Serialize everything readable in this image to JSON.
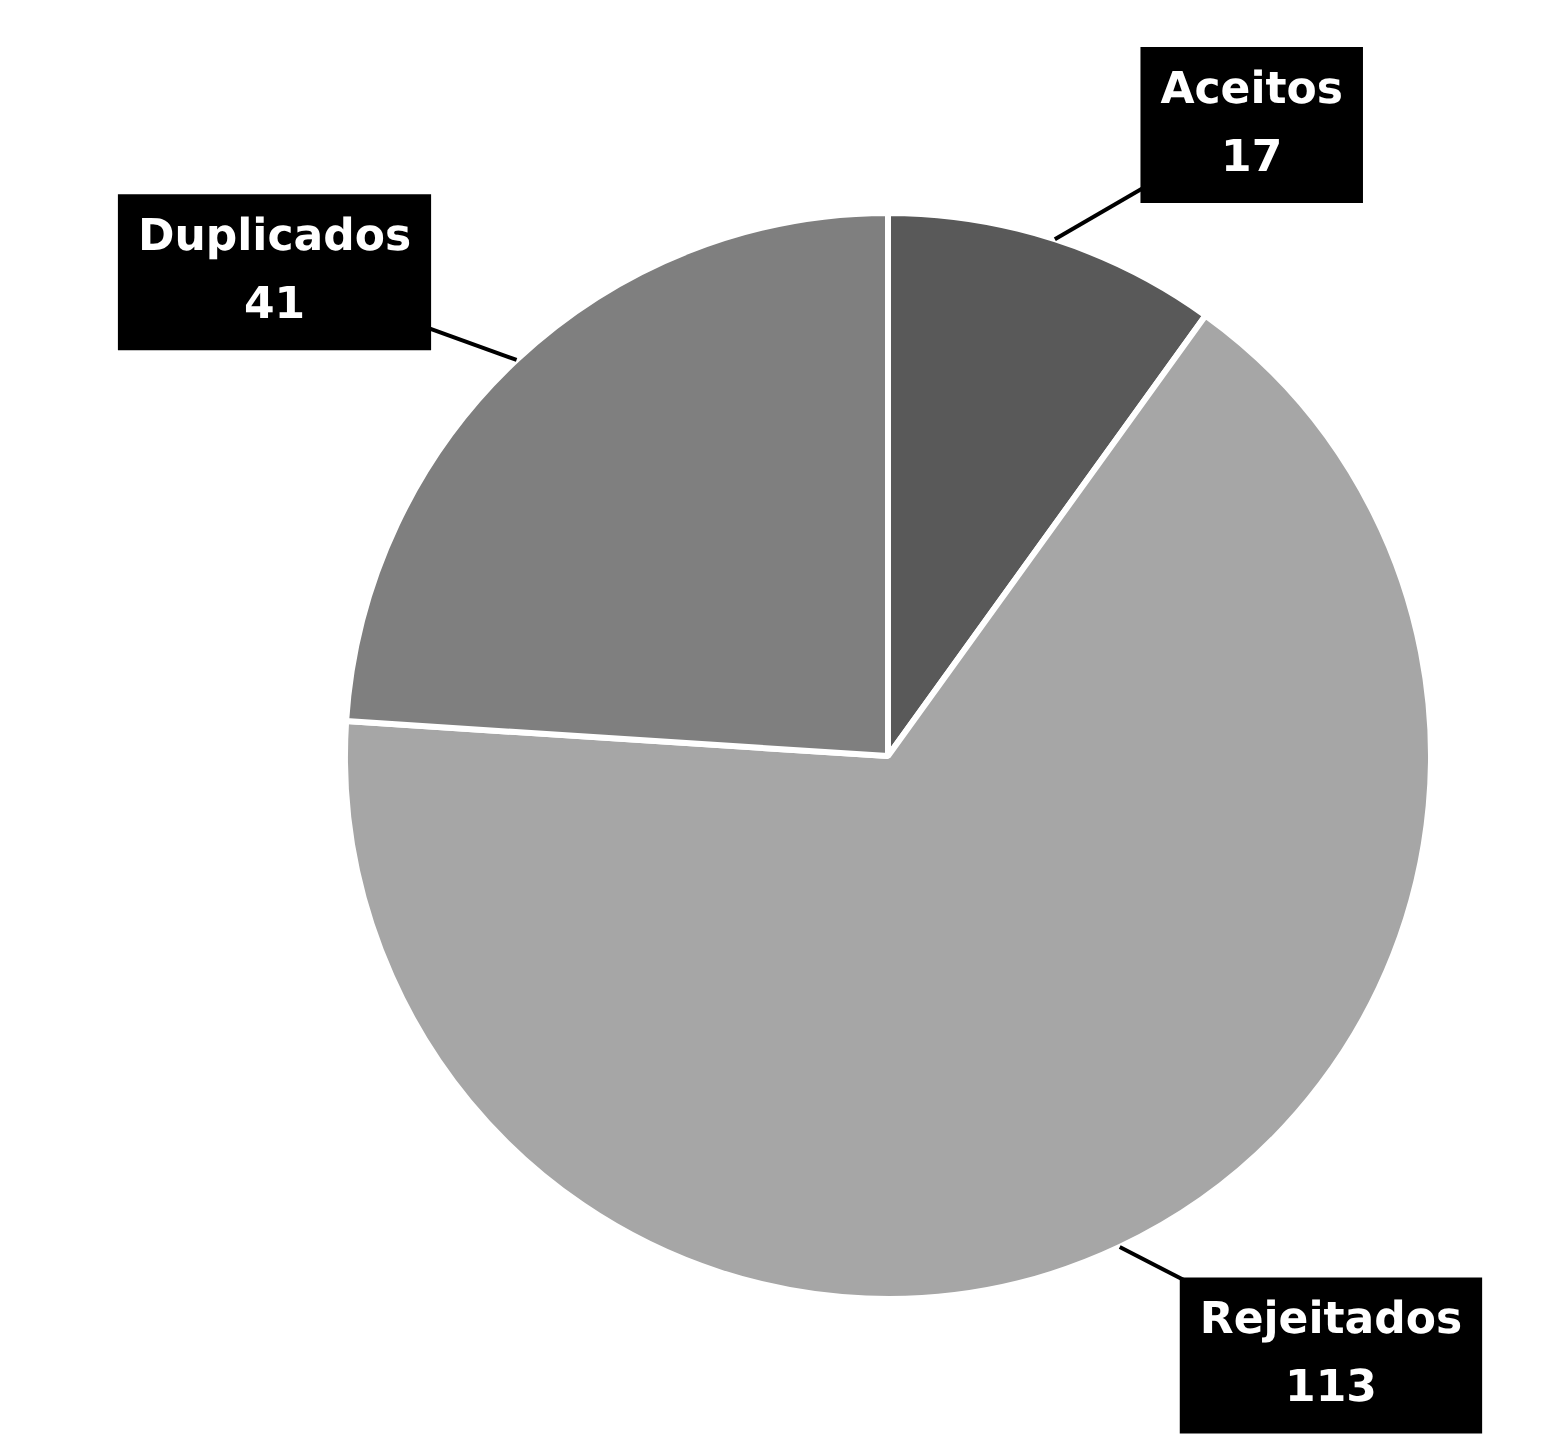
{
  "chart_data": {
    "type": "pie",
    "categories": [
      "Aceitos",
      "Rejeitados",
      "Duplicados"
    ],
    "values": [
      17,
      113,
      41
    ],
    "colors": [
      "#595959",
      "#a6a6a6",
      "#7f7f7f"
    ],
    "data_labels": true,
    "legend": false
  }
}
